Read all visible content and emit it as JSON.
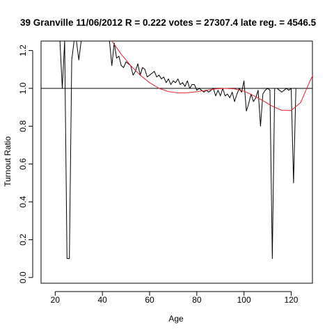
{
  "chart_data": {
    "type": "line",
    "title": "39 Granville 11/06/2012 R = 0.222 votes = 27307.4 late reg. = 4546.5",
    "xlabel": "Age",
    "ylabel": "Turnout Ratio",
    "xlim": [
      14,
      129
    ],
    "ylim": [
      -0.03,
      1.25
    ],
    "x_ticks": [
      20,
      40,
      60,
      80,
      100,
      120
    ],
    "y_ticks": [
      0.0,
      0.2,
      0.4,
      0.6,
      0.8,
      1.0,
      1.2
    ],
    "grid": false,
    "legend": "none",
    "reference_line": {
      "y": 1.0,
      "color": "#000000"
    },
    "series": [
      {
        "color": "#000000",
        "x": [
          22,
          23,
          24,
          25,
          26,
          27,
          28,
          29,
          30,
          31,
          43,
          44,
          45,
          46,
          47,
          48,
          49,
          50,
          51,
          52,
          53,
          54,
          55,
          56,
          57,
          58,
          59,
          60,
          61,
          62,
          63,
          64,
          65,
          66,
          67,
          68,
          69,
          70,
          71,
          72,
          73,
          74,
          75,
          76,
          77,
          78,
          79,
          80,
          81,
          82,
          83,
          84,
          85,
          86,
          87,
          88,
          89,
          90,
          91,
          92,
          93,
          94,
          95,
          96,
          97,
          98,
          99,
          100,
          101,
          102,
          103,
          104,
          105,
          106,
          107,
          108,
          109,
          110,
          111,
          112,
          113,
          114,
          115,
          116,
          117,
          118,
          119,
          120,
          121,
          122,
          123,
          124
        ],
        "y": [
          1.25,
          1.0,
          1.25,
          0.1,
          0.1,
          1.15,
          1.25,
          1.25,
          1.15,
          1.25,
          1.25,
          1.12,
          1.24,
          1.16,
          1.17,
          1.12,
          1.11,
          1.14,
          1.13,
          1.12,
          1.07,
          1.09,
          1.13,
          1.07,
          1.11,
          1.1,
          1.06,
          1.07,
          1.08,
          1.09,
          1.06,
          1.07,
          1.05,
          1.06,
          1.03,
          1.05,
          1.02,
          1.04,
          1.03,
          1.05,
          1.02,
          1.03,
          1.01,
          1.04,
          1.0,
          1.02,
          1.02,
          0.99,
          1.0,
          0.99,
          0.98,
          0.99,
          0.98,
          0.99,
          1.0,
          0.96,
          0.99,
          0.96,
          1.0,
          0.96,
          0.97,
          0.95,
          0.98,
          0.93,
          0.97,
          1.0,
          0.98,
          1.04,
          0.88,
          0.92,
          0.97,
          0.93,
          0.95,
          0.99,
          0.8,
          0.97,
          0.99,
          1.0,
          0.99,
          0.1,
          1.0,
          1.0,
          0.99,
          0.98,
          0.99,
          1.0,
          0.99,
          1.0,
          0.5,
          1.0,
          1.0,
          1.0
        ]
      },
      {
        "color": "#e8202a",
        "x": [
          44,
          48,
          52,
          56,
          60,
          64,
          68,
          72,
          76,
          80,
          84,
          88,
          92,
          96,
          100,
          104,
          108,
          112,
          116,
          120,
          124,
          128,
          130
        ],
        "y": [
          1.25,
          1.18,
          1.12,
          1.07,
          1.03,
          1.0,
          0.983,
          0.976,
          0.977,
          0.982,
          0.99,
          0.997,
          1.0,
          0.997,
          0.985,
          0.962,
          0.935,
          0.906,
          0.884,
          0.883,
          0.925,
          1.04,
          1.09
        ]
      }
    ]
  }
}
